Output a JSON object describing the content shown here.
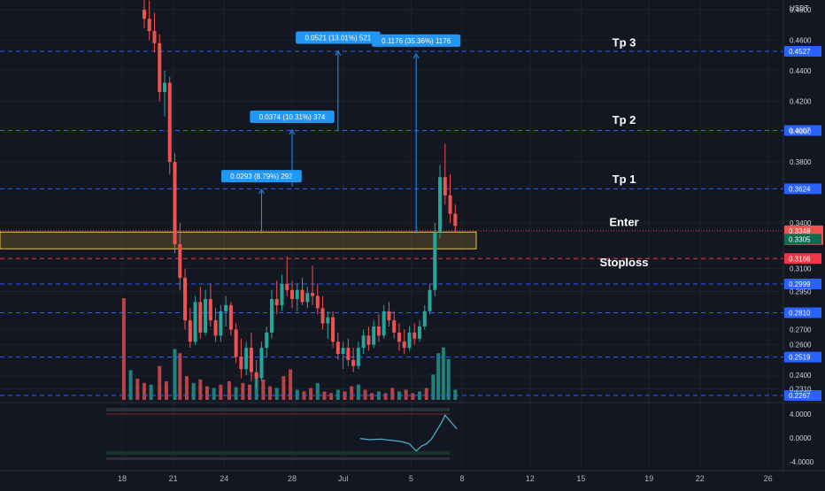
{
  "chart_data": {
    "type": "candlestick",
    "currency": "USDT",
    "price_axis_ticks": [
      "0.4800",
      "0.4600",
      "0.4400",
      "0.4200",
      "0.4000",
      "0.3800",
      "0.3400",
      "0.3100",
      "0.2950",
      "0.2700",
      "0.2600",
      "0.2400",
      "0.2310"
    ],
    "time_axis_ticks": [
      {
        "label": "18",
        "day": 18
      },
      {
        "label": "21",
        "day": 21
      },
      {
        "label": "24",
        "day": 24
      },
      {
        "label": "28",
        "day": 28
      },
      {
        "label": "Jul",
        "day": 31
      },
      {
        "label": "5",
        "day": 35
      },
      {
        "label": "8",
        "day": 38
      },
      {
        "label": "12",
        "day": 42
      },
      {
        "label": "15",
        "day": 45
      },
      {
        "label": "19",
        "day": 49
      },
      {
        "label": "22",
        "day": 52
      },
      {
        "label": "26",
        "day": 56
      }
    ],
    "levels": [
      {
        "value": 0.4527,
        "label": "0.4527",
        "kind": "blue"
      },
      {
        "value": 0.4007,
        "label": "0.4007",
        "kind": "blue"
      },
      {
        "value": 0.3624,
        "label": "0.3624",
        "kind": "blue"
      },
      {
        "value": 0.3166,
        "label": "0.3166",
        "kind": "red"
      },
      {
        "value": 0.2999,
        "label": "0.2999",
        "kind": "blue"
      },
      {
        "value": 0.281,
        "label": "0.2810",
        "kind": "blue"
      },
      {
        "value": 0.2519,
        "label": "0.2519",
        "kind": "blue"
      },
      {
        "value": 0.2267,
        "label": "0.2267",
        "kind": "blue"
      }
    ],
    "entry_zone": {
      "low": 0.323,
      "high": 0.334
    },
    "current_price": {
      "value": 0.3348,
      "label": "0.3348",
      "countdown": "02:22:32"
    },
    "last_close_label": {
      "value": 0.3305,
      "label": "0.3305"
    },
    "annotations": [
      {
        "text": "Tp 3",
        "price": 0.456
      },
      {
        "text": "Tp 2",
        "price": 0.405
      },
      {
        "text": "Tp 1",
        "price": 0.366
      },
      {
        "text": "Enter",
        "price": 0.338
      },
      {
        "text": "Stoploss",
        "price": 0.3115
      }
    ],
    "measurements": [
      {
        "label": "0.0293 (8.79%) 293",
        "day": 26.2,
        "from": 0.333,
        "to": 0.362
      },
      {
        "label": "0.0374 (10.31%) 374",
        "day": 28.0,
        "from": 0.364,
        "to": 0.401
      },
      {
        "label": "0.0521 (13.01%) 521",
        "day": 30.7,
        "from": 0.401,
        "to": 0.453
      },
      {
        "label": "0.1176 (35.36%) 1176",
        "day": 35.3,
        "from": 0.333,
        "to": 0.451
      }
    ],
    "candles": [
      {
        "day": 19.3,
        "o": 0.48,
        "h": 0.492,
        "l": 0.468,
        "c": 0.474
      },
      {
        "day": 19.6,
        "o": 0.474,
        "h": 0.486,
        "l": 0.46,
        "c": 0.466
      },
      {
        "day": 19.9,
        "o": 0.466,
        "h": 0.478,
        "l": 0.452,
        "c": 0.458
      },
      {
        "day": 20.2,
        "o": 0.458,
        "h": 0.464,
        "l": 0.42,
        "c": 0.426
      },
      {
        "day": 20.5,
        "o": 0.426,
        "h": 0.44,
        "l": 0.41,
        "c": 0.432
      },
      {
        "day": 20.8,
        "o": 0.432,
        "h": 0.436,
        "l": 0.372,
        "c": 0.38
      },
      {
        "day": 21.1,
        "o": 0.38,
        "h": 0.386,
        "l": 0.32,
        "c": 0.326
      },
      {
        "day": 21.4,
        "o": 0.326,
        "h": 0.34,
        "l": 0.296,
        "c": 0.304
      },
      {
        "day": 21.7,
        "o": 0.304,
        "h": 0.31,
        "l": 0.27,
        "c": 0.276
      },
      {
        "day": 22.0,
        "o": 0.276,
        "h": 0.284,
        "l": 0.258,
        "c": 0.262
      },
      {
        "day": 22.3,
        "o": 0.262,
        "h": 0.292,
        "l": 0.26,
        "c": 0.288
      },
      {
        "day": 22.6,
        "o": 0.288,
        "h": 0.298,
        "l": 0.264,
        "c": 0.268
      },
      {
        "day": 22.9,
        "o": 0.268,
        "h": 0.296,
        "l": 0.266,
        "c": 0.29
      },
      {
        "day": 23.2,
        "o": 0.29,
        "h": 0.3,
        "l": 0.272,
        "c": 0.276
      },
      {
        "day": 23.5,
        "o": 0.276,
        "h": 0.284,
        "l": 0.262,
        "c": 0.266
      },
      {
        "day": 23.8,
        "o": 0.266,
        "h": 0.286,
        "l": 0.262,
        "c": 0.282
      },
      {
        "day": 24.1,
        "o": 0.282,
        "h": 0.292,
        "l": 0.272,
        "c": 0.286
      },
      {
        "day": 24.4,
        "o": 0.286,
        "h": 0.288,
        "l": 0.266,
        "c": 0.27
      },
      {
        "day": 24.7,
        "o": 0.27,
        "h": 0.274,
        "l": 0.248,
        "c": 0.252
      },
      {
        "day": 25.0,
        "o": 0.252,
        "h": 0.264,
        "l": 0.238,
        "c": 0.244
      },
      {
        "day": 25.3,
        "o": 0.244,
        "h": 0.262,
        "l": 0.24,
        "c": 0.258
      },
      {
        "day": 25.6,
        "o": 0.258,
        "h": 0.268,
        "l": 0.236,
        "c": 0.242
      },
      {
        "day": 25.9,
        "o": 0.242,
        "h": 0.25,
        "l": 0.232,
        "c": 0.238
      },
      {
        "day": 26.2,
        "o": 0.238,
        "h": 0.262,
        "l": 0.236,
        "c": 0.258
      },
      {
        "day": 26.5,
        "o": 0.258,
        "h": 0.272,
        "l": 0.252,
        "c": 0.268
      },
      {
        "day": 26.8,
        "o": 0.268,
        "h": 0.296,
        "l": 0.264,
        "c": 0.29
      },
      {
        "day": 27.1,
        "o": 0.29,
        "h": 0.302,
        "l": 0.28,
        "c": 0.286
      },
      {
        "day": 27.4,
        "o": 0.286,
        "h": 0.306,
        "l": 0.282,
        "c": 0.3
      },
      {
        "day": 27.7,
        "o": 0.3,
        "h": 0.318,
        "l": 0.292,
        "c": 0.296
      },
      {
        "day": 28.0,
        "o": 0.296,
        "h": 0.302,
        "l": 0.284,
        "c": 0.29
      },
      {
        "day": 28.3,
        "o": 0.29,
        "h": 0.3,
        "l": 0.282,
        "c": 0.296
      },
      {
        "day": 28.6,
        "o": 0.296,
        "h": 0.304,
        "l": 0.286,
        "c": 0.288
      },
      {
        "day": 28.9,
        "o": 0.288,
        "h": 0.298,
        "l": 0.284,
        "c": 0.294
      },
      {
        "day": 29.2,
        "o": 0.294,
        "h": 0.312,
        "l": 0.286,
        "c": 0.292
      },
      {
        "day": 29.5,
        "o": 0.292,
        "h": 0.3,
        "l": 0.28,
        "c": 0.284
      },
      {
        "day": 29.8,
        "o": 0.284,
        "h": 0.292,
        "l": 0.27,
        "c": 0.274
      },
      {
        "day": 30.1,
        "o": 0.274,
        "h": 0.282,
        "l": 0.264,
        "c": 0.278
      },
      {
        "day": 30.4,
        "o": 0.278,
        "h": 0.282,
        "l": 0.258,
        "c": 0.262
      },
      {
        "day": 30.7,
        "o": 0.262,
        "h": 0.268,
        "l": 0.25,
        "c": 0.254
      },
      {
        "day": 31.0,
        "o": 0.254,
        "h": 0.262,
        "l": 0.244,
        "c": 0.258
      },
      {
        "day": 31.3,
        "o": 0.258,
        "h": 0.264,
        "l": 0.246,
        "c": 0.25
      },
      {
        "day": 31.6,
        "o": 0.25,
        "h": 0.258,
        "l": 0.242,
        "c": 0.246
      },
      {
        "day": 31.9,
        "o": 0.246,
        "h": 0.262,
        "l": 0.244,
        "c": 0.258
      },
      {
        "day": 32.2,
        "o": 0.258,
        "h": 0.27,
        "l": 0.254,
        "c": 0.266
      },
      {
        "day": 32.5,
        "o": 0.266,
        "h": 0.272,
        "l": 0.256,
        "c": 0.26
      },
      {
        "day": 32.8,
        "o": 0.26,
        "h": 0.276,
        "l": 0.258,
        "c": 0.272
      },
      {
        "day": 33.1,
        "o": 0.272,
        "h": 0.28,
        "l": 0.262,
        "c": 0.266
      },
      {
        "day": 33.4,
        "o": 0.266,
        "h": 0.286,
        "l": 0.264,
        "c": 0.282
      },
      {
        "day": 33.7,
        "o": 0.282,
        "h": 0.288,
        "l": 0.272,
        "c": 0.276
      },
      {
        "day": 34.0,
        "o": 0.276,
        "h": 0.282,
        "l": 0.264,
        "c": 0.268
      },
      {
        "day": 34.3,
        "o": 0.268,
        "h": 0.274,
        "l": 0.256,
        "c": 0.262
      },
      {
        "day": 34.6,
        "o": 0.262,
        "h": 0.27,
        "l": 0.254,
        "c": 0.258
      },
      {
        "day": 34.9,
        "o": 0.258,
        "h": 0.272,
        "l": 0.256,
        "c": 0.268
      },
      {
        "day": 35.2,
        "o": 0.268,
        "h": 0.274,
        "l": 0.26,
        "c": 0.264
      },
      {
        "day": 35.5,
        "o": 0.264,
        "h": 0.276,
        "l": 0.262,
        "c": 0.272
      },
      {
        "day": 35.8,
        "o": 0.272,
        "h": 0.286,
        "l": 0.27,
        "c": 0.282
      },
      {
        "day": 36.1,
        "o": 0.282,
        "h": 0.3,
        "l": 0.28,
        "c": 0.296
      },
      {
        "day": 36.4,
        "o": 0.296,
        "h": 0.34,
        "l": 0.292,
        "c": 0.334
      },
      {
        "day": 36.7,
        "o": 0.334,
        "h": 0.378,
        "l": 0.33,
        "c": 0.37
      },
      {
        "day": 37.0,
        "o": 0.37,
        "h": 0.392,
        "l": 0.352,
        "c": 0.358
      },
      {
        "day": 37.3,
        "o": 0.358,
        "h": 0.372,
        "l": 0.34,
        "c": 0.346
      },
      {
        "day": 37.6,
        "o": 0.346,
        "h": 0.352,
        "l": 0.334,
        "c": 0.338
      }
    ],
    "volume": [
      {
        "day": 18.1,
        "v": 120
      },
      {
        "day": 18.5,
        "v": 35
      },
      {
        "day": 18.9,
        "v": 25
      },
      {
        "day": 19.3,
        "v": 20
      },
      {
        "day": 19.7,
        "v": 18
      },
      {
        "day": 20.2,
        "v": 40
      },
      {
        "day": 20.6,
        "v": 22
      },
      {
        "day": 21.1,
        "v": 60
      },
      {
        "day": 21.4,
        "v": 55
      },
      {
        "day": 21.8,
        "v": 28
      },
      {
        "day": 22.2,
        "v": 20
      },
      {
        "day": 22.6,
        "v": 24
      },
      {
        "day": 23.0,
        "v": 16
      },
      {
        "day": 23.4,
        "v": 14
      },
      {
        "day": 23.8,
        "v": 18
      },
      {
        "day": 24.3,
        "v": 22
      },
      {
        "day": 24.7,
        "v": 15
      },
      {
        "day": 25.1,
        "v": 20
      },
      {
        "day": 25.5,
        "v": 18
      },
      {
        "day": 25.9,
        "v": 30
      },
      {
        "day": 26.3,
        "v": 24
      },
      {
        "day": 26.7,
        "v": 16
      },
      {
        "day": 27.1,
        "v": 14
      },
      {
        "day": 27.5,
        "v": 28
      },
      {
        "day": 27.9,
        "v": 36
      },
      {
        "day": 28.3,
        "v": 12
      },
      {
        "day": 28.7,
        "v": 10
      },
      {
        "day": 29.1,
        "v": 14
      },
      {
        "day": 29.5,
        "v": 20
      },
      {
        "day": 29.9,
        "v": 10
      },
      {
        "day": 30.3,
        "v": 8
      },
      {
        "day": 30.7,
        "v": 12
      },
      {
        "day": 31.1,
        "v": 10
      },
      {
        "day": 31.5,
        "v": 16
      },
      {
        "day": 31.9,
        "v": 18
      },
      {
        "day": 32.3,
        "v": 12
      },
      {
        "day": 32.7,
        "v": 8
      },
      {
        "day": 33.1,
        "v": 10
      },
      {
        "day": 33.5,
        "v": 8
      },
      {
        "day": 33.9,
        "v": 14
      },
      {
        "day": 34.3,
        "v": 10
      },
      {
        "day": 34.7,
        "v": 12
      },
      {
        "day": 35.1,
        "v": 8
      },
      {
        "day": 35.5,
        "v": 10
      },
      {
        "day": 35.9,
        "v": 14
      },
      {
        "day": 36.3,
        "v": 30
      },
      {
        "day": 36.6,
        "v": 55
      },
      {
        "day": 36.9,
        "v": 62
      },
      {
        "day": 37.2,
        "v": 48
      },
      {
        "day": 37.6,
        "v": 12
      }
    ],
    "oscillator": {
      "ticks": [
        "4.0000",
        "0.0000",
        "-4.0000"
      ],
      "ylim": [
        -4.6,
        4.6
      ],
      "points": [
        {
          "day": 32.0,
          "v": -0.1
        },
        {
          "day": 32.6,
          "v": -0.3
        },
        {
          "day": 33.2,
          "v": -0.2
        },
        {
          "day": 33.8,
          "v": -0.4
        },
        {
          "day": 34.4,
          "v": -0.6
        },
        {
          "day": 34.9,
          "v": -1.0
        },
        {
          "day": 35.3,
          "v": -2.2
        },
        {
          "day": 35.6,
          "v": -1.4
        },
        {
          "day": 35.9,
          "v": -1.0
        },
        {
          "day": 36.2,
          "v": -0.2
        },
        {
          "day": 36.5,
          "v": 1.2
        },
        {
          "day": 36.8,
          "v": 2.6
        },
        {
          "day": 37.0,
          "v": 3.8
        },
        {
          "day": 37.3,
          "v": 2.8
        },
        {
          "day": 37.7,
          "v": 1.5
        }
      ]
    }
  },
  "colors": {
    "background": "#131722",
    "up": "#26a69a",
    "down": "#ef5350",
    "level_blue": "#2962ff",
    "level_red": "#f23645",
    "entry_zone": "#f5c242",
    "measure": "#2196f3",
    "oscillator": "#4fb6d8"
  }
}
